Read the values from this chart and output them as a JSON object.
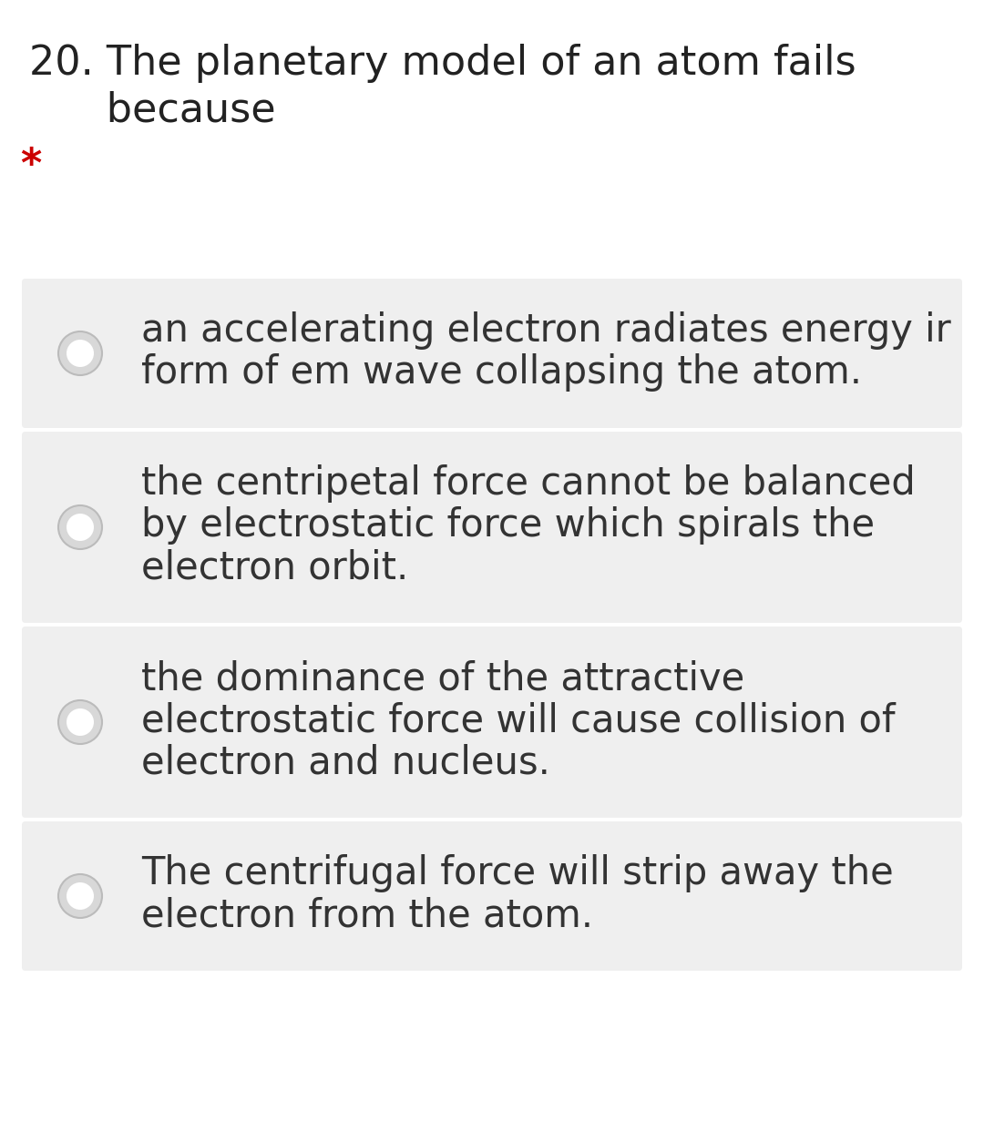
{
  "background_color": "#ffffff",
  "question_line1": "20. The planetary model of an atom fails",
  "question_line2": "      because",
  "asterisk": "*",
  "asterisk_color": "#cc0000",
  "options": [
    {
      "lines": [
        "an accelerating electron radiates energy ir",
        "form of em wave collapsing the atom."
      ]
    },
    {
      "lines": [
        "the centripetal force cannot be balanced",
        "by electrostatic force which spirals the",
        "electron orbit."
      ]
    },
    {
      "lines": [
        "the dominance of the attractive",
        "electrostatic force will cause collision of",
        "electron and nucleus."
      ]
    },
    {
      "lines": [
        "The centrifugal force will strip away the",
        "electron from the atom."
      ]
    }
  ],
  "option_bg_color": "#efefef",
  "option_text_color": "#333333",
  "radio_fill_color": "#d8d8d8",
  "radio_border_color": "#bbbbbb",
  "radio_inner_color": "#ffffff",
  "question_font_size": 32,
  "option_font_size": 30,
  "asterisk_font_size": 32,
  "fig_width": 10.8,
  "fig_height": 12.42,
  "dpi": 100
}
